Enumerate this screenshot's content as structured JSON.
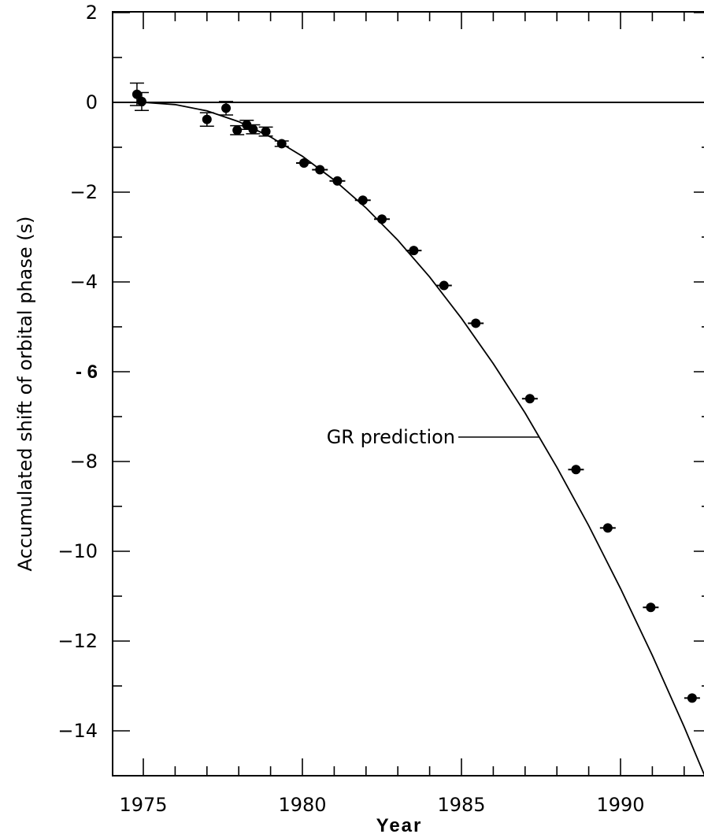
{
  "chart_data": {
    "type": "scatter",
    "title": "",
    "xlabel": "Year",
    "ylabel": "Accumulated shift of orbital phase (s)",
    "xlim": [
      1974,
      1993
    ],
    "ylim": [
      -15,
      2
    ],
    "x_ticks": [
      {
        "value": 1975,
        "label": "1975"
      },
      {
        "value": 1980,
        "label": "1980"
      },
      {
        "value": 1985,
        "label": "1985"
      },
      {
        "value": 1990,
        "label": "1990"
      }
    ],
    "y_ticks": [
      {
        "value": 2,
        "label": "2"
      },
      {
        "value": 0,
        "label": "0"
      },
      {
        "value": -2,
        "label": "−2"
      },
      {
        "value": -4,
        "label": "−4"
      },
      {
        "value": -6,
        "label": "- 6"
      },
      {
        "value": -8,
        "label": "−8"
      },
      {
        "value": -10,
        "label": "−10"
      },
      {
        "value": -12,
        "label": "−12"
      },
      {
        "value": -14,
        "label": "−14"
      }
    ],
    "grid": false,
    "series": [
      {
        "kind": "points",
        "x": [
          1974.8,
          1974.95,
          1977.0,
          1977.6,
          1977.95,
          1978.25,
          1978.45,
          1978.85,
          1979.35,
          1980.05,
          1980.55,
          1981.1,
          1981.9,
          1982.5,
          1983.5,
          1984.45,
          1985.45,
          1987.15,
          1988.6,
          1989.6,
          1990.95,
          1992.25
        ],
        "y": [
          0.18,
          0.02,
          -0.38,
          -0.13,
          -0.62,
          -0.5,
          -0.6,
          -0.65,
          -0.92,
          -1.35,
          -1.5,
          -1.75,
          -2.18,
          -2.6,
          -3.3,
          -4.08,
          -4.92,
          -6.6,
          -8.18,
          -9.48,
          -11.25,
          -13.27
        ],
        "y_err": [
          0.25,
          0.2,
          0.15,
          0.15,
          0.1,
          0.1,
          0.1,
          0.1,
          0.06,
          0.05,
          0.05,
          0.05,
          0.05,
          0.04,
          0.04,
          0.04,
          0.05,
          0.05,
          0.04,
          0.04,
          0.04,
          0.04
        ]
      },
      {
        "kind": "curve",
        "x": [
          1975,
          1976,
          1977,
          1978,
          1979,
          1980,
          1981,
          1982,
          1983,
          1984,
          1985,
          1986,
          1987,
          1988,
          1989,
          1990,
          1991,
          1992,
          1993
        ],
        "y": [
          0.0,
          -0.05,
          -0.19,
          -0.43,
          -0.77,
          -1.2,
          -1.73,
          -2.35,
          -3.07,
          -3.89,
          -4.81,
          -5.82,
          -6.92,
          -8.13,
          -9.43,
          -10.83,
          -12.32,
          -13.91,
          -15.6
        ]
      }
    ],
    "reference_line": {
      "y": 0
    },
    "annotation": {
      "text": "GR prediction",
      "points_to": {
        "x": 1987.6,
        "y": -7.4
      }
    }
  }
}
